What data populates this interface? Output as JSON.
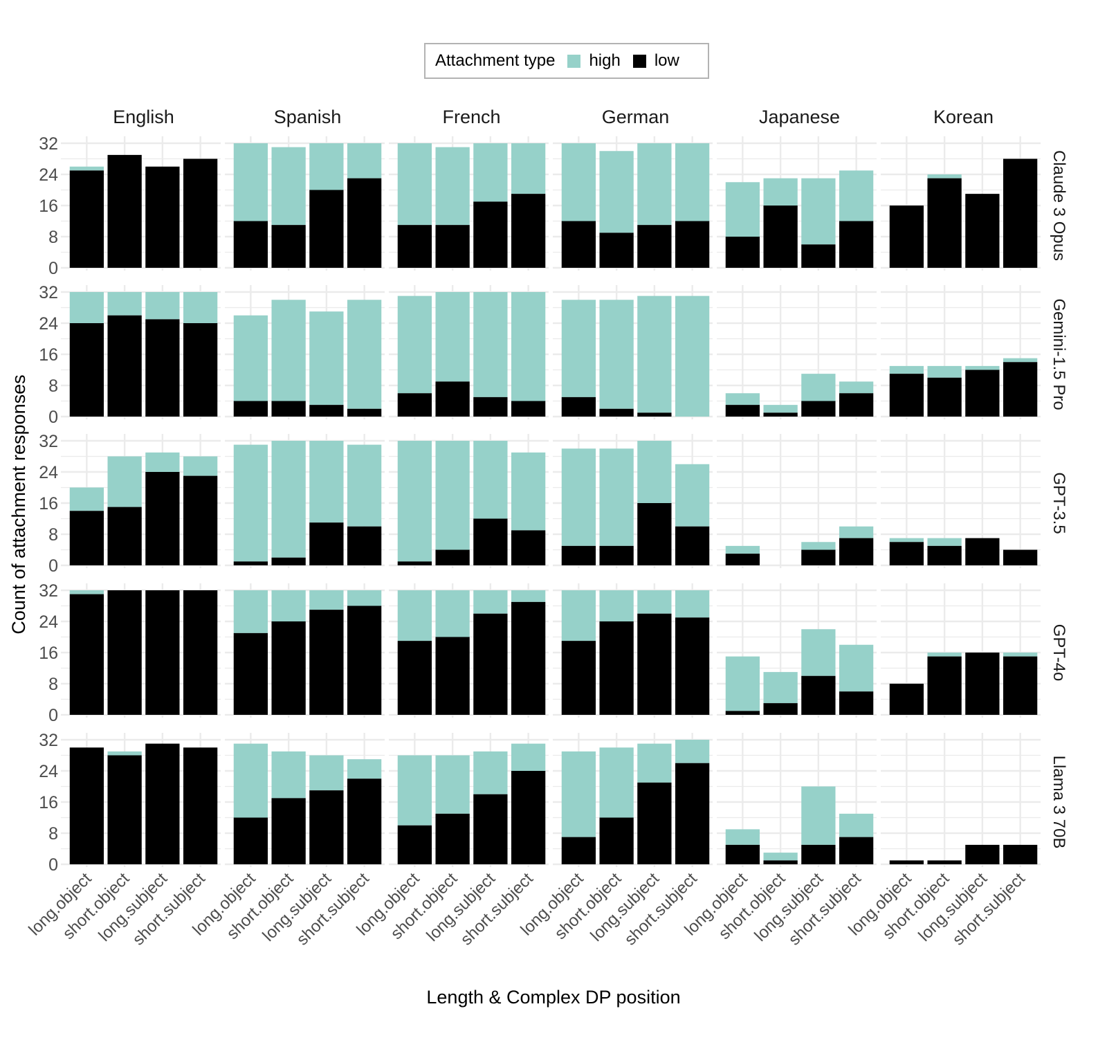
{
  "chart_data": {
    "type": "bar",
    "stacked": true,
    "title": "",
    "xlabel": "Length & Complex DP position",
    "ylabel": "Count of attachment responses",
    "ylim": [
      0,
      32
    ],
    "yticks": [
      0,
      8,
      16,
      24,
      32
    ],
    "grid": true,
    "legend": {
      "title": "Attachment type",
      "position": "top",
      "entries": [
        {
          "name": "high",
          "color": "#96d1c9"
        },
        {
          "name": "low",
          "color": "#000000"
        }
      ]
    },
    "categories": [
      "long.object",
      "short.object",
      "long.subject",
      "short.subject"
    ],
    "facet_columns": [
      "English",
      "Spanish",
      "French",
      "German",
      "Japanese",
      "Korean"
    ],
    "facet_rows": [
      "Claude 3 Opus",
      "Gemini-1.5 Pro",
      "GPT-3.5",
      "GPT-4o",
      "Llama 3 70B"
    ],
    "panels": [
      {
        "model": "Claude 3 Opus",
        "language": "English",
        "low": [
          25,
          29,
          26,
          28
        ],
        "high": [
          1,
          0,
          0,
          0
        ]
      },
      {
        "model": "Claude 3 Opus",
        "language": "Spanish",
        "low": [
          12,
          11,
          20,
          23
        ],
        "high": [
          20,
          20,
          12,
          9
        ]
      },
      {
        "model": "Claude 3 Opus",
        "language": "French",
        "low": [
          11,
          11,
          17,
          19
        ],
        "high": [
          21,
          20,
          15,
          13
        ]
      },
      {
        "model": "Claude 3 Opus",
        "language": "German",
        "low": [
          12,
          9,
          11,
          12
        ],
        "high": [
          20,
          21,
          21,
          20
        ]
      },
      {
        "model": "Claude 3 Opus",
        "language": "Japanese",
        "low": [
          8,
          16,
          6,
          12
        ],
        "high": [
          14,
          7,
          17,
          13
        ]
      },
      {
        "model": "Claude 3 Opus",
        "language": "Korean",
        "low": [
          16,
          23,
          19,
          28
        ],
        "high": [
          0,
          1,
          0,
          0
        ]
      },
      {
        "model": "Gemini-1.5 Pro",
        "language": "English",
        "low": [
          24,
          26,
          25,
          24
        ],
        "high": [
          8,
          6,
          7,
          8
        ]
      },
      {
        "model": "Gemini-1.5 Pro",
        "language": "Spanish",
        "low": [
          4,
          4,
          3,
          2
        ],
        "high": [
          22,
          26,
          24,
          28
        ]
      },
      {
        "model": "Gemini-1.5 Pro",
        "language": "French",
        "low": [
          6,
          9,
          5,
          4
        ],
        "high": [
          25,
          23,
          27,
          28
        ]
      },
      {
        "model": "Gemini-1.5 Pro",
        "language": "German",
        "low": [
          5,
          2,
          1,
          0
        ],
        "high": [
          25,
          28,
          30,
          31
        ]
      },
      {
        "model": "Gemini-1.5 Pro",
        "language": "Japanese",
        "low": [
          3,
          1,
          4,
          6
        ],
        "high": [
          3,
          2,
          7,
          3
        ]
      },
      {
        "model": "Gemini-1.5 Pro",
        "language": "Korean",
        "low": [
          11,
          10,
          12,
          14
        ],
        "high": [
          2,
          3,
          1,
          1
        ]
      },
      {
        "model": "GPT-3.5",
        "language": "English",
        "low": [
          14,
          15,
          24,
          23
        ],
        "high": [
          6,
          13,
          5,
          5
        ]
      },
      {
        "model": "GPT-3.5",
        "language": "Spanish",
        "low": [
          1,
          2,
          11,
          10
        ],
        "high": [
          30,
          30,
          21,
          21
        ]
      },
      {
        "model": "GPT-3.5",
        "language": "French",
        "low": [
          1,
          4,
          12,
          9
        ],
        "high": [
          31,
          28,
          20,
          20
        ]
      },
      {
        "model": "GPT-3.5",
        "language": "German",
        "low": [
          5,
          5,
          16,
          10
        ],
        "high": [
          25,
          25,
          16,
          16
        ]
      },
      {
        "model": "GPT-3.5",
        "language": "Japanese",
        "low": [
          3,
          0,
          4,
          7
        ],
        "high": [
          2,
          0,
          2,
          3
        ]
      },
      {
        "model": "GPT-3.5",
        "language": "Korean",
        "low": [
          6,
          5,
          7,
          4
        ],
        "high": [
          1,
          2,
          0,
          0
        ]
      },
      {
        "model": "GPT-4o",
        "language": "English",
        "low": [
          31,
          32,
          32,
          32
        ],
        "high": [
          1,
          0,
          0,
          0
        ]
      },
      {
        "model": "GPT-4o",
        "language": "Spanish",
        "low": [
          21,
          24,
          27,
          28
        ],
        "high": [
          11,
          8,
          5,
          4
        ]
      },
      {
        "model": "GPT-4o",
        "language": "French",
        "low": [
          19,
          20,
          26,
          29
        ],
        "high": [
          13,
          12,
          6,
          3
        ]
      },
      {
        "model": "GPT-4o",
        "language": "German",
        "low": [
          19,
          24,
          26,
          25
        ],
        "high": [
          13,
          8,
          6,
          7
        ]
      },
      {
        "model": "GPT-4o",
        "language": "Japanese",
        "low": [
          1,
          3,
          10,
          6
        ],
        "high": [
          14,
          8,
          12,
          12
        ]
      },
      {
        "model": "GPT-4o",
        "language": "Korean",
        "low": [
          8,
          15,
          16,
          15
        ],
        "high": [
          0,
          1,
          0,
          1
        ]
      },
      {
        "model": "Llama 3 70B",
        "language": "English",
        "low": [
          30,
          28,
          31,
          30
        ],
        "high": [
          0,
          1,
          0,
          0
        ]
      },
      {
        "model": "Llama 3 70B",
        "language": "Spanish",
        "low": [
          12,
          17,
          19,
          22
        ],
        "high": [
          19,
          12,
          9,
          5
        ]
      },
      {
        "model": "Llama 3 70B",
        "language": "French",
        "low": [
          10,
          13,
          18,
          24
        ],
        "high": [
          18,
          15,
          11,
          7
        ]
      },
      {
        "model": "Llama 3 70B",
        "language": "German",
        "low": [
          7,
          12,
          21,
          26
        ],
        "high": [
          22,
          18,
          10,
          6
        ]
      },
      {
        "model": "Llama 3 70B",
        "language": "Japanese",
        "low": [
          5,
          1,
          5,
          7
        ],
        "high": [
          4,
          2,
          15,
          6
        ]
      },
      {
        "model": "Llama 3 70B",
        "language": "Korean",
        "low": [
          1,
          1,
          5,
          5
        ],
        "high": [
          0,
          0,
          0,
          0
        ]
      }
    ]
  }
}
